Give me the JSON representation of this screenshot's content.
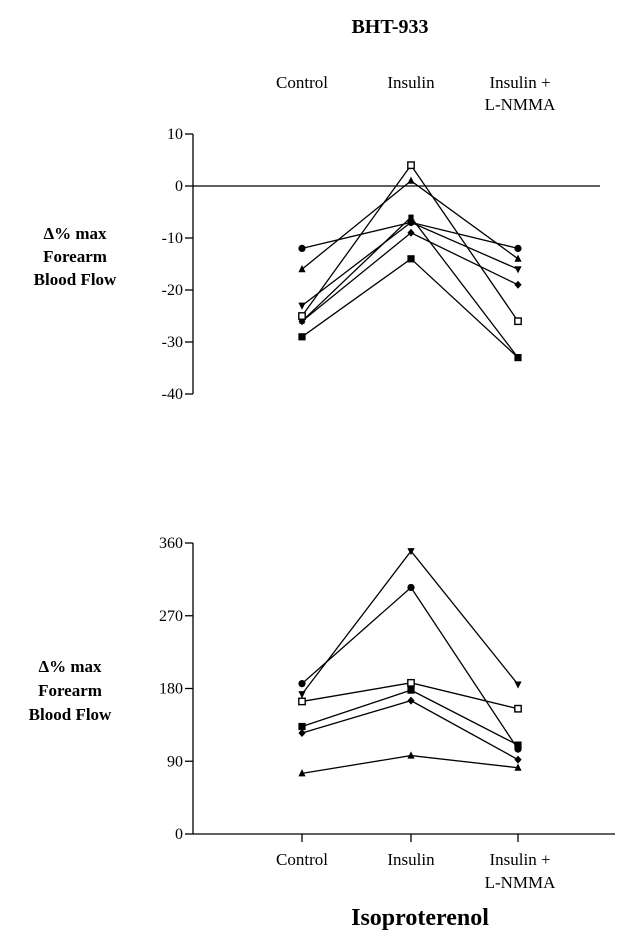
{
  "top_title": "BHT-933",
  "bottom_title": "Isoproterenol",
  "top_categories": [
    "Control",
    "Insulin",
    "Insulin +",
    "L-NMMA"
  ],
  "bottom_categories": [
    "Control",
    "Insulin",
    "Insulin +",
    "L-NMMA"
  ],
  "top_ylabel": [
    "Δ% max",
    "Forearm",
    "Blood Flow"
  ],
  "bottom_ylabel": [
    "Δ% max",
    "Forearm",
    "Blood Flow"
  ],
  "chart_data": [
    {
      "type": "line",
      "title": "BHT-933",
      "categories": [
        "Control",
        "Insulin",
        "Insulin + L-NMMA"
      ],
      "ylabel": "Δ% max Forearm Blood Flow",
      "ylim": [
        -40,
        10
      ],
      "yticks": [
        10,
        0,
        -10,
        -20,
        -30,
        -40
      ],
      "zero_line": true,
      "series": [
        {
          "marker": "circle",
          "values": [
            -12,
            -7,
            -12
          ]
        },
        {
          "marker": "triangle-up",
          "values": [
            -16,
            1,
            -14
          ]
        },
        {
          "marker": "triangle-down",
          "values": [
            -23,
            -7,
            -16
          ]
        },
        {
          "marker": "diamond",
          "values": [
            -26,
            -9,
            -19
          ]
        },
        {
          "marker": "square-open",
          "values": [
            -25,
            4,
            -26
          ]
        },
        {
          "marker": "square",
          "values": [
            -29,
            -14,
            -33
          ]
        },
        {
          "marker": "square-small",
          "values": [
            -26,
            -6,
            -33
          ]
        }
      ]
    },
    {
      "type": "line",
      "title": "Isoproterenol",
      "categories": [
        "Control",
        "Insulin",
        "Insulin + L-NMMA"
      ],
      "ylabel": "Δ% max Forearm Blood Flow",
      "ylim": [
        0,
        360
      ],
      "yticks": [
        360,
        270,
        180,
        90,
        0
      ],
      "series": [
        {
          "marker": "circle",
          "values": [
            186,
            305,
            105
          ]
        },
        {
          "marker": "triangle-down",
          "values": [
            173,
            350,
            185
          ]
        },
        {
          "marker": "square-open",
          "values": [
            164,
            187,
            155
          ]
        },
        {
          "marker": "square",
          "values": [
            133,
            178,
            110
          ]
        },
        {
          "marker": "diamond",
          "values": [
            125,
            165,
            92
          ]
        },
        {
          "marker": "triangle-up",
          "values": [
            75,
            97,
            82
          ]
        }
      ]
    }
  ]
}
